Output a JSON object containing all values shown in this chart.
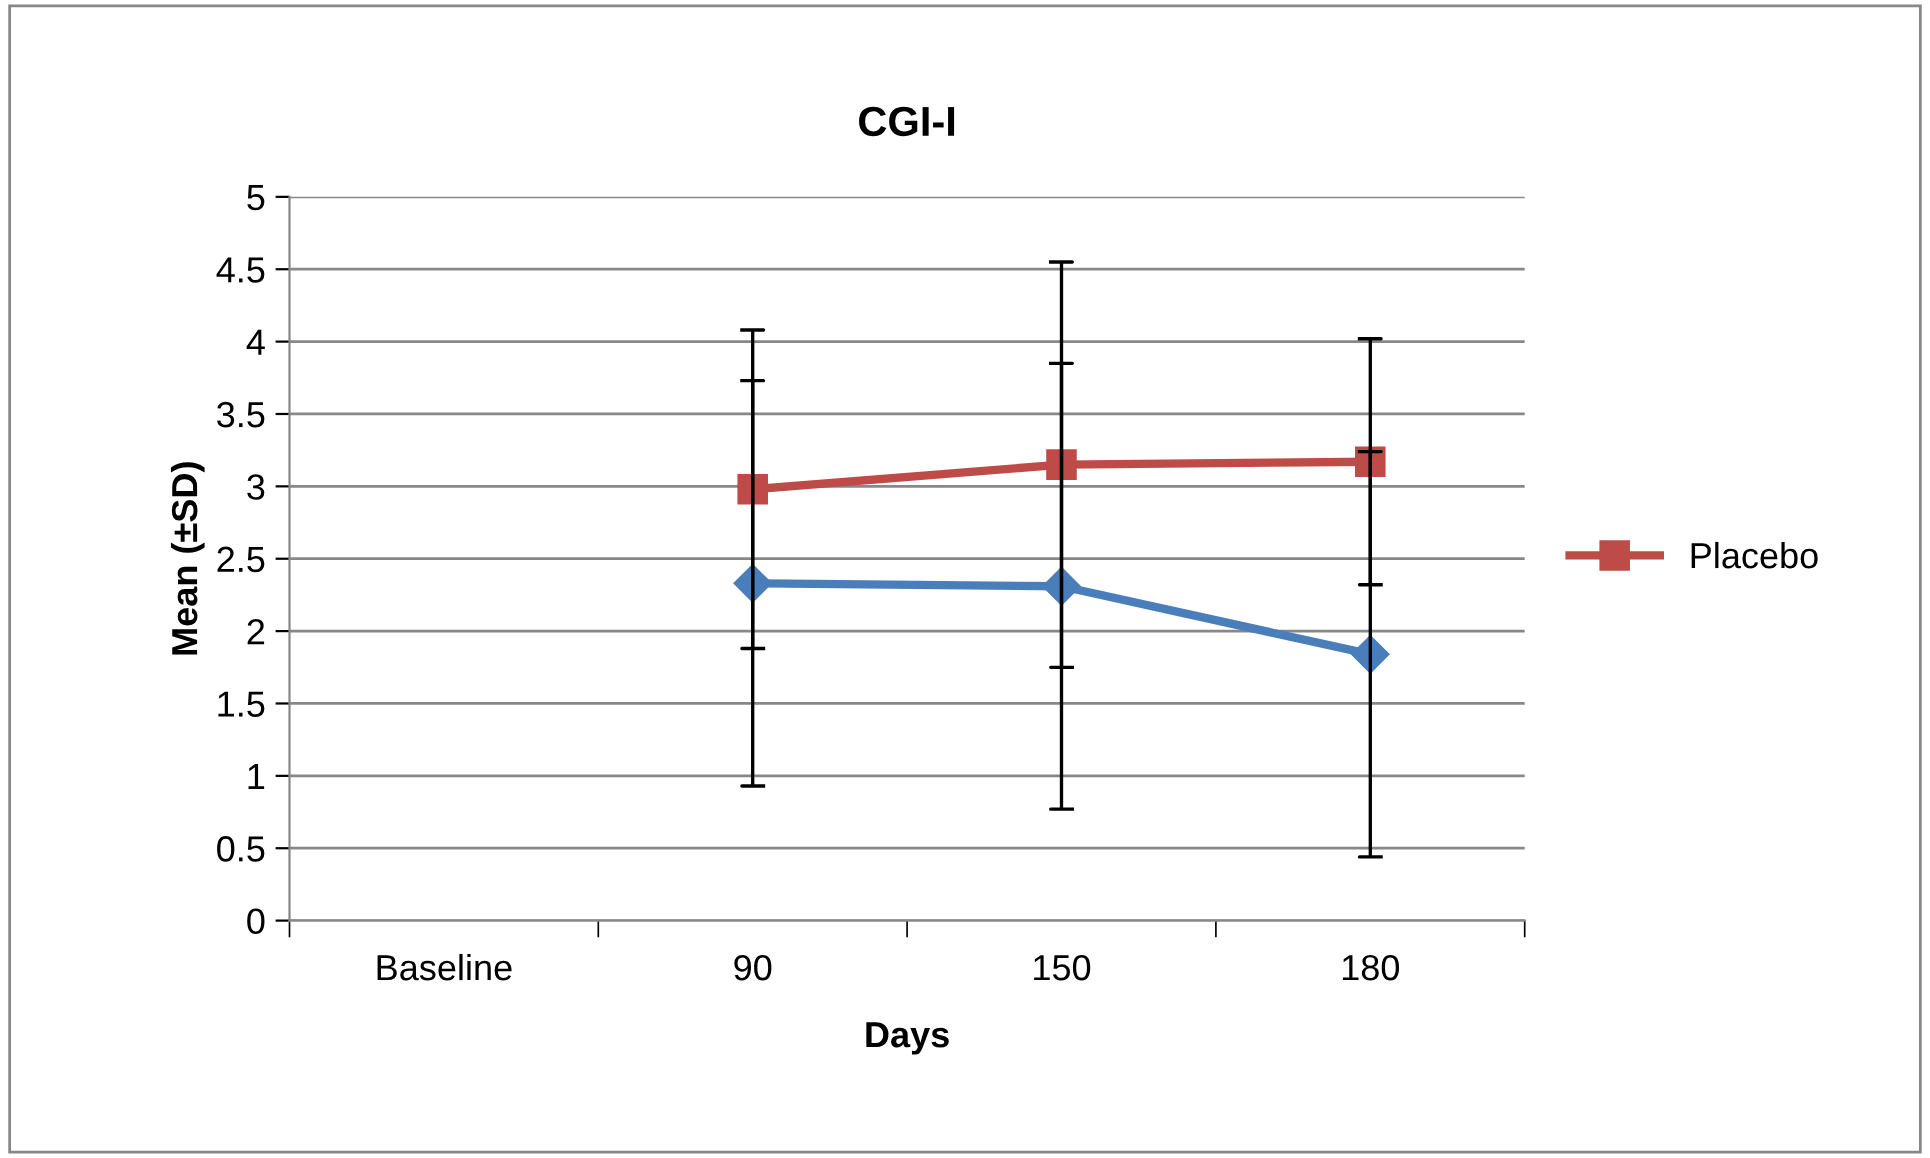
{
  "chart_data": {
    "type": "line",
    "title": "CGI-I",
    "xlabel": "Days",
    "ylabel": "Mean (±SD)",
    "categories": [
      "Baseline",
      "90",
      "150",
      "180"
    ],
    "series": [
      {
        "color": "#4a7ebb",
        "marker": "diamond",
        "values": [
          null,
          2.33,
          2.31,
          1.84
        ],
        "errors": [
          null,
          1.4,
          1.54,
          1.4
        ]
      },
      {
        "name": "Placebo",
        "color": "#be4b48",
        "marker": "square",
        "values": [
          null,
          2.98,
          3.15,
          3.17
        ],
        "errors": [
          null,
          1.1,
          1.4,
          0.85
        ]
      }
    ],
    "ylim": [
      0,
      5
    ],
    "yticks": [
      0,
      0.5,
      1,
      1.5,
      2,
      2.5,
      3,
      3.5,
      4,
      4.5,
      5
    ],
    "grid": "y",
    "legend": "right",
    "line_style": "solid"
  }
}
